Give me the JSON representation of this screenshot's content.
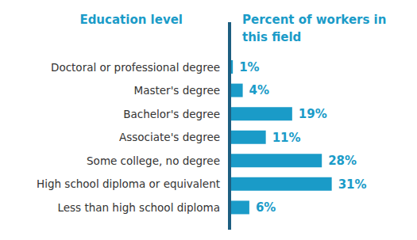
{
  "chart_data": {
    "type": "bar",
    "orientation": "horizontal",
    "y_label": "Education level",
    "x_label": "Percent of workers in this field",
    "categories": [
      "Doctoral or professional degree",
      "Master's degree",
      "Bachelor's degree",
      "Associate's degree",
      "Some college, no degree",
      "High school diploma or equivalent",
      "Less than high school diploma"
    ],
    "values": [
      1,
      4,
      19,
      11,
      28,
      31,
      6
    ],
    "value_labels": [
      "1%",
      "4%",
      "19%",
      "11%",
      "28%",
      "31%",
      "6%"
    ],
    "data_labels": true,
    "tick_labels": "y",
    "color": "#1a9bc8",
    "xlim": [
      0,
      40
    ],
    "grid": false
  }
}
